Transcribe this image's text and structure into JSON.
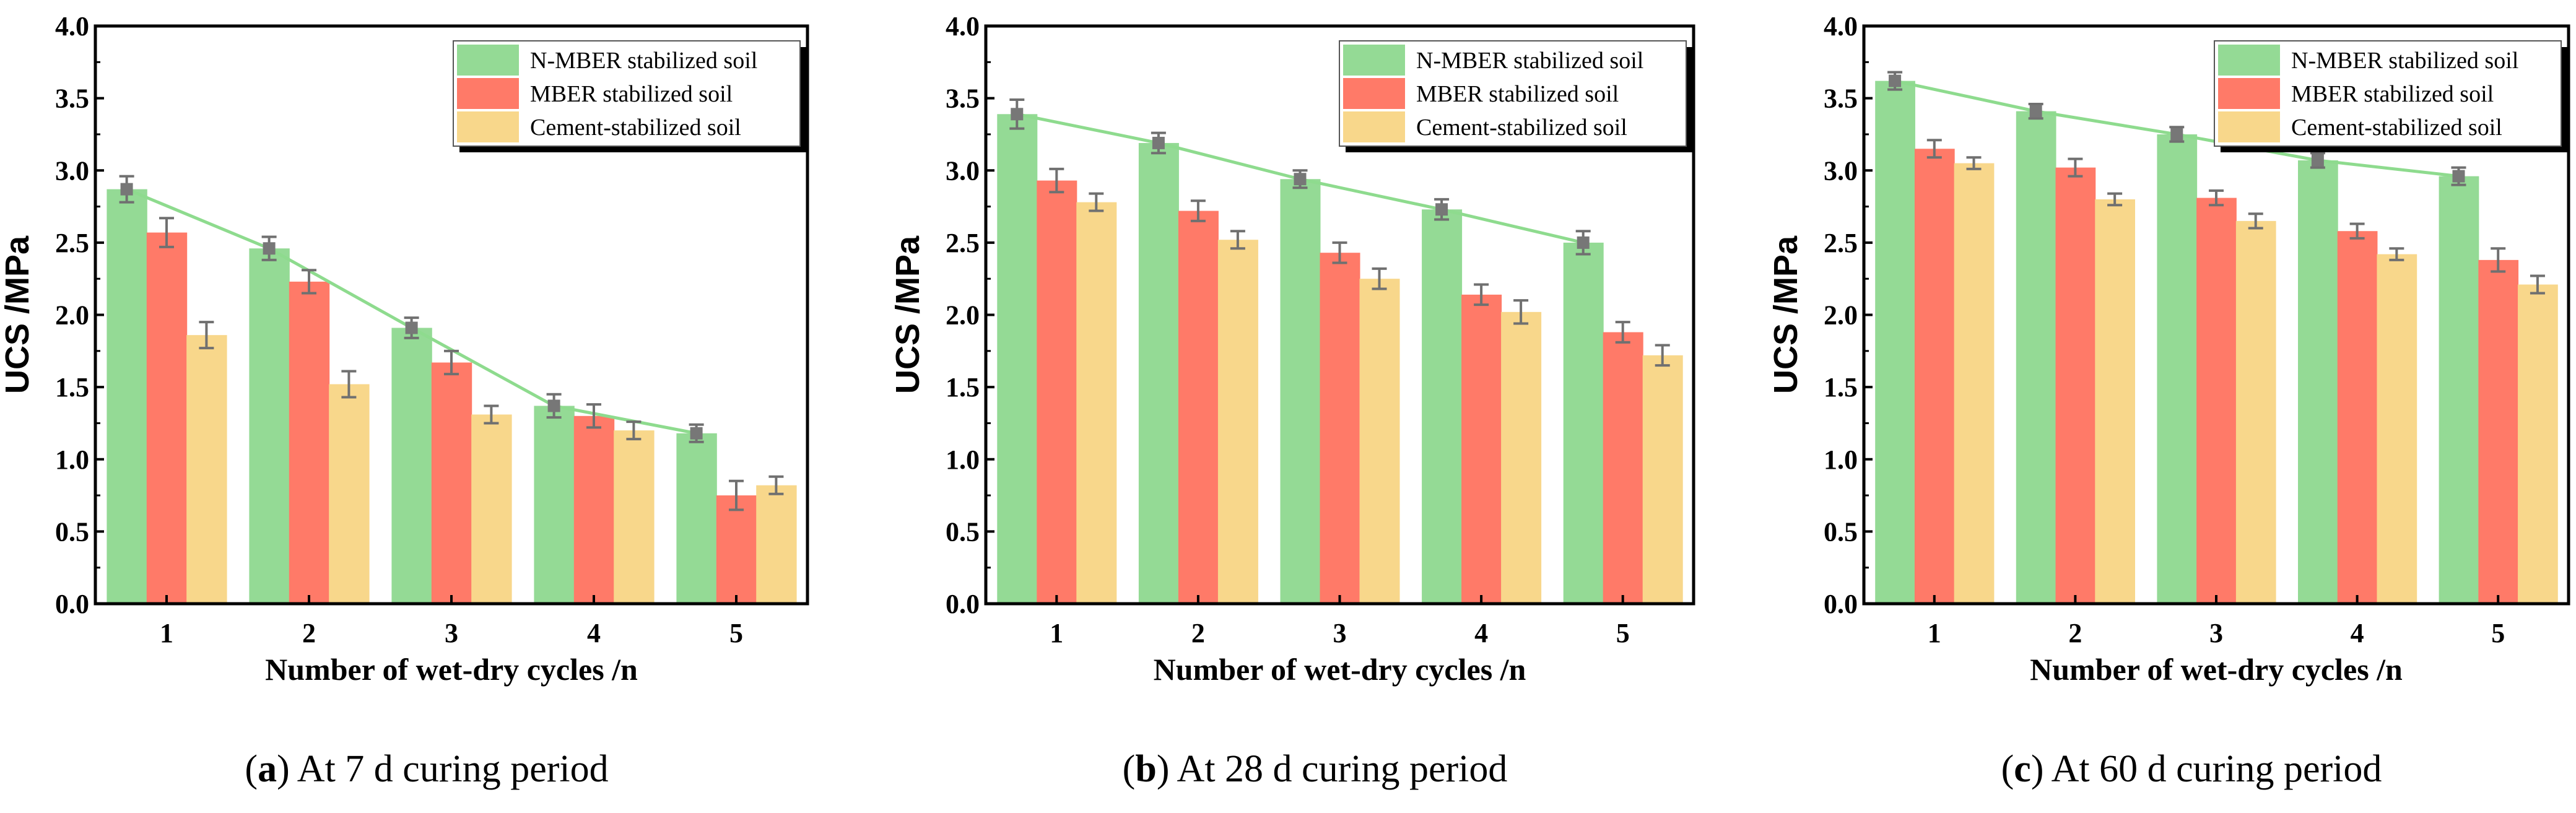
{
  "colors": {
    "n_mber": "#94DA95",
    "mber": "#FF7A68",
    "cement": "#F8D78B",
    "line": "#8EDB8E",
    "marker": "#777777",
    "error": "#707070"
  },
  "chart_data": [
    {
      "type": "bar",
      "caption_letter": "a",
      "caption_text": "At 7 d curing period",
      "xlabel": "Number of wet-dry cycles /n",
      "ylabel": "UCS /MPa",
      "ylim": [
        0,
        4.0
      ],
      "yticks": [
        "0.0",
        "0.5",
        "1.0",
        "1.5",
        "2.0",
        "2.5",
        "3.0",
        "3.5",
        "4.0"
      ],
      "categories": [
        "1",
        "2",
        "3",
        "4",
        "5"
      ],
      "legend_position": "top-right",
      "series": [
        {
          "name": "N-MBER stabilized soil",
          "values": [
            2.87,
            2.46,
            1.91,
            1.37,
            1.18
          ],
          "errors": [
            0.09,
            0.08,
            0.07,
            0.08,
            0.06
          ],
          "line": true
        },
        {
          "name": "MBER stabilized soil",
          "values": [
            2.57,
            2.23,
            1.67,
            1.3,
            0.75
          ],
          "errors": [
            0.1,
            0.08,
            0.08,
            0.08,
            0.1
          ]
        },
        {
          "name": "Cement-stabilized soil",
          "values": [
            1.86,
            1.52,
            1.31,
            1.2,
            0.82
          ],
          "errors": [
            0.09,
            0.09,
            0.06,
            0.06,
            0.06
          ]
        }
      ]
    },
    {
      "type": "bar",
      "caption_letter": "b",
      "caption_text": "At 28 d curing period",
      "xlabel": "Number of wet-dry cycles /n",
      "ylabel": "UCS /MPa",
      "ylim": [
        0,
        4.0
      ],
      "yticks": [
        "0.0",
        "0.5",
        "1.0",
        "1.5",
        "2.0",
        "2.5",
        "3.0",
        "3.5",
        "4.0"
      ],
      "categories": [
        "1",
        "2",
        "3",
        "4",
        "5"
      ],
      "legend_position": "top-right",
      "series": [
        {
          "name": "N-MBER stabilized soil",
          "values": [
            3.39,
            3.19,
            2.94,
            2.73,
            2.5
          ],
          "errors": [
            0.1,
            0.07,
            0.06,
            0.07,
            0.08
          ],
          "line": true
        },
        {
          "name": "MBER stabilized soil",
          "values": [
            2.93,
            2.72,
            2.43,
            2.14,
            1.88
          ],
          "errors": [
            0.08,
            0.07,
            0.07,
            0.07,
            0.07
          ]
        },
        {
          "name": "Cement-stabilized soil",
          "values": [
            2.78,
            2.52,
            2.25,
            2.02,
            1.72
          ],
          "errors": [
            0.06,
            0.06,
            0.07,
            0.08,
            0.07
          ]
        }
      ]
    },
    {
      "type": "bar",
      "caption_letter": "c",
      "caption_text": "At 60 d curing period",
      "xlabel": "Number of wet-dry cycles /n",
      "ylabel": "UCS /MPa",
      "ylim": [
        0,
        4.0
      ],
      "yticks": [
        "0.0",
        "0.5",
        "1.0",
        "1.5",
        "2.0",
        "2.5",
        "3.0",
        "3.5",
        "4.0"
      ],
      "categories": [
        "1",
        "2",
        "3",
        "4",
        "5"
      ],
      "legend_position": "top-right",
      "series": [
        {
          "name": "N-MBER stabilized soil",
          "values": [
            3.62,
            3.41,
            3.25,
            3.07,
            2.96
          ],
          "errors": [
            0.06,
            0.05,
            0.05,
            0.05,
            0.06
          ],
          "line": true
        },
        {
          "name": "MBER stabilized soil",
          "values": [
            3.15,
            3.02,
            2.81,
            2.58,
            2.38
          ],
          "errors": [
            0.06,
            0.06,
            0.05,
            0.05,
            0.08
          ]
        },
        {
          "name": "Cement-stabilized soil",
          "values": [
            3.05,
            2.8,
            2.65,
            2.42,
            2.21
          ],
          "errors": [
            0.04,
            0.04,
            0.05,
            0.04,
            0.06
          ]
        }
      ]
    }
  ]
}
